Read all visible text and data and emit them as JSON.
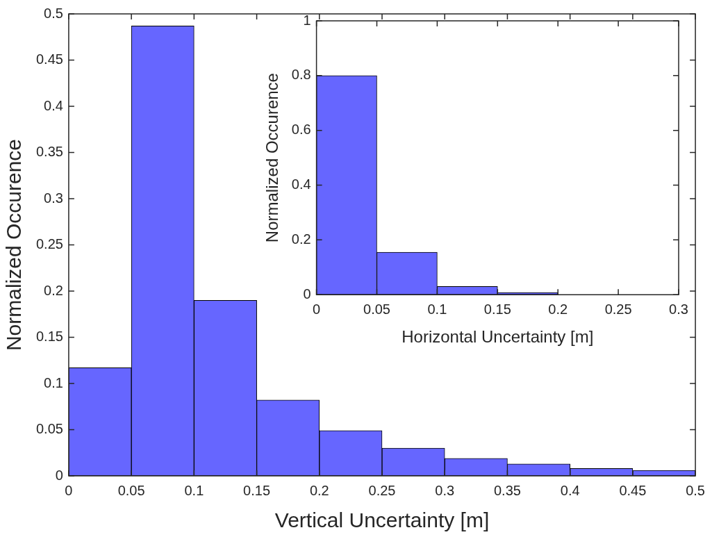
{
  "chart_data": [
    {
      "type": "histogram",
      "xlabel": "Vertical Uncertainty [m]",
      "ylabel": "Normalized Occurence",
      "bins": [
        0,
        0.05,
        0.1,
        0.15,
        0.2,
        0.25,
        0.3,
        0.35,
        0.4,
        0.45,
        0.5
      ],
      "values": [
        0.117,
        0.487,
        0.19,
        0.082,
        0.049,
        0.03,
        0.019,
        0.013,
        0.008,
        0.006
      ],
      "color": "#6666ff",
      "xlim": [
        0,
        0.5
      ],
      "xticks": [
        0,
        0.05,
        0.1,
        0.15,
        0.2,
        0.25,
        0.3,
        0.35,
        0.4,
        0.45,
        0.5
      ],
      "ylim": [
        0,
        0.5
      ],
      "yticks": [
        0,
        0.05,
        0.1,
        0.15,
        0.2,
        0.25,
        0.3,
        0.35,
        0.4,
        0.45,
        0.5
      ],
      "grid": false,
      "legend": false
    },
    {
      "type": "histogram",
      "xlabel": "Horizontal Uncertainty [m]",
      "ylabel": "Normalized Occurence",
      "bins": [
        0,
        0.05,
        0.1,
        0.15,
        0.2,
        0.25,
        0.3
      ],
      "values": [
        0.8,
        0.155,
        0.03,
        0.008,
        null,
        null
      ],
      "color": "#6666ff",
      "xlim": [
        0,
        0.3
      ],
      "xticks": [
        0,
        0.05,
        0.1,
        0.15,
        0.2,
        0.25,
        0.3
      ],
      "ylim": [
        0,
        1
      ],
      "yticks": [
        0,
        0.2,
        0.4,
        0.6,
        0.8,
        1
      ],
      "grid": false,
      "legend": false
    }
  ]
}
